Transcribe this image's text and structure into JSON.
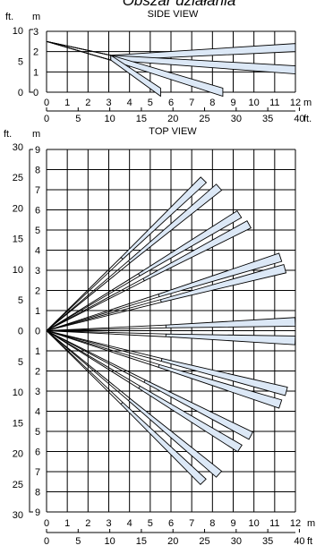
{
  "title": "Obszar działania",
  "side_view": {
    "label": "SIDE VIEW",
    "unit_ft": "ft.",
    "unit_m": "m",
    "y_m_ticks": [
      "3",
      "2",
      "1",
      "0"
    ],
    "y_ft_ticks": [
      "10",
      "5",
      "0"
    ],
    "x_m_ticks": [
      "0",
      "1",
      "2",
      "3",
      "4",
      "5",
      "6",
      "7",
      "8",
      "9",
      "10",
      "11",
      "12"
    ],
    "x_m_unit": "m",
    "x_ft_ticks": [
      "0",
      "5",
      "10",
      "15",
      "20",
      "25",
      "30",
      "35",
      "40"
    ],
    "x_ft_unit": "ft."
  },
  "top_view": {
    "label": "TOP VIEW",
    "unit_ft": "ft.",
    "unit_m": "m",
    "y_m_ticks": [
      "9",
      "8",
      "7",
      "6",
      "5",
      "4",
      "3",
      "2",
      "1",
      "0",
      "1",
      "2",
      "3",
      "4",
      "5",
      "6",
      "7",
      "8",
      "9"
    ],
    "y_ft_ticks": [
      "30",
      "25",
      "20",
      "15",
      "10",
      "5",
      "0",
      "5",
      "10",
      "15",
      "20",
      "25",
      "30"
    ],
    "x_m_ticks": [
      "0",
      "1",
      "2",
      "3",
      "4",
      "5",
      "6",
      "7",
      "8",
      "9",
      "10",
      "11",
      "12"
    ],
    "x_m_unit": "m",
    "x_ft_ticks": [
      "0",
      "5",
      "10",
      "15",
      "20",
      "25",
      "30",
      "35",
      "40"
    ],
    "x_ft_unit": "ft"
  },
  "side_zones": [
    {
      "near": [
        3.1,
        1.7
      ],
      "far": [
        12,
        2.2
      ]
    },
    {
      "near": [
        3.1,
        1.7
      ],
      "far": [
        12,
        1.1
      ]
    },
    {
      "near": [
        3.1,
        1.7
      ],
      "far": [
        8.5,
        0
      ]
    },
    {
      "near": [
        3.1,
        1.7
      ],
      "far": [
        5.5,
        0
      ]
    }
  ],
  "top_zones": [
    {
      "angle": -44.7,
      "far": 10.65
    },
    {
      "angle": -40.6,
      "far": 10.95
    },
    {
      "angle": -31.9,
      "far": 10.95
    },
    {
      "angle": -28.4,
      "far": 11.1
    },
    {
      "angle": -17.9,
      "far": 11.85
    },
    {
      "angle": -15.0,
      "far": 11.9
    },
    {
      "angle": -2.1,
      "far": 12.0
    },
    {
      "angle": 2.3,
      "far": 12.0
    },
    {
      "angle": 14.6,
      "far": 11.95
    },
    {
      "angle": 17.9,
      "far": 11.85
    },
    {
      "angle": 27.9,
      "far": 11.15
    },
    {
      "angle": 32.1,
      "far": 11.0
    },
    {
      "angle": 40.6,
      "far": 10.95
    },
    {
      "angle": 44.8,
      "far": 10.65
    }
  ]
}
